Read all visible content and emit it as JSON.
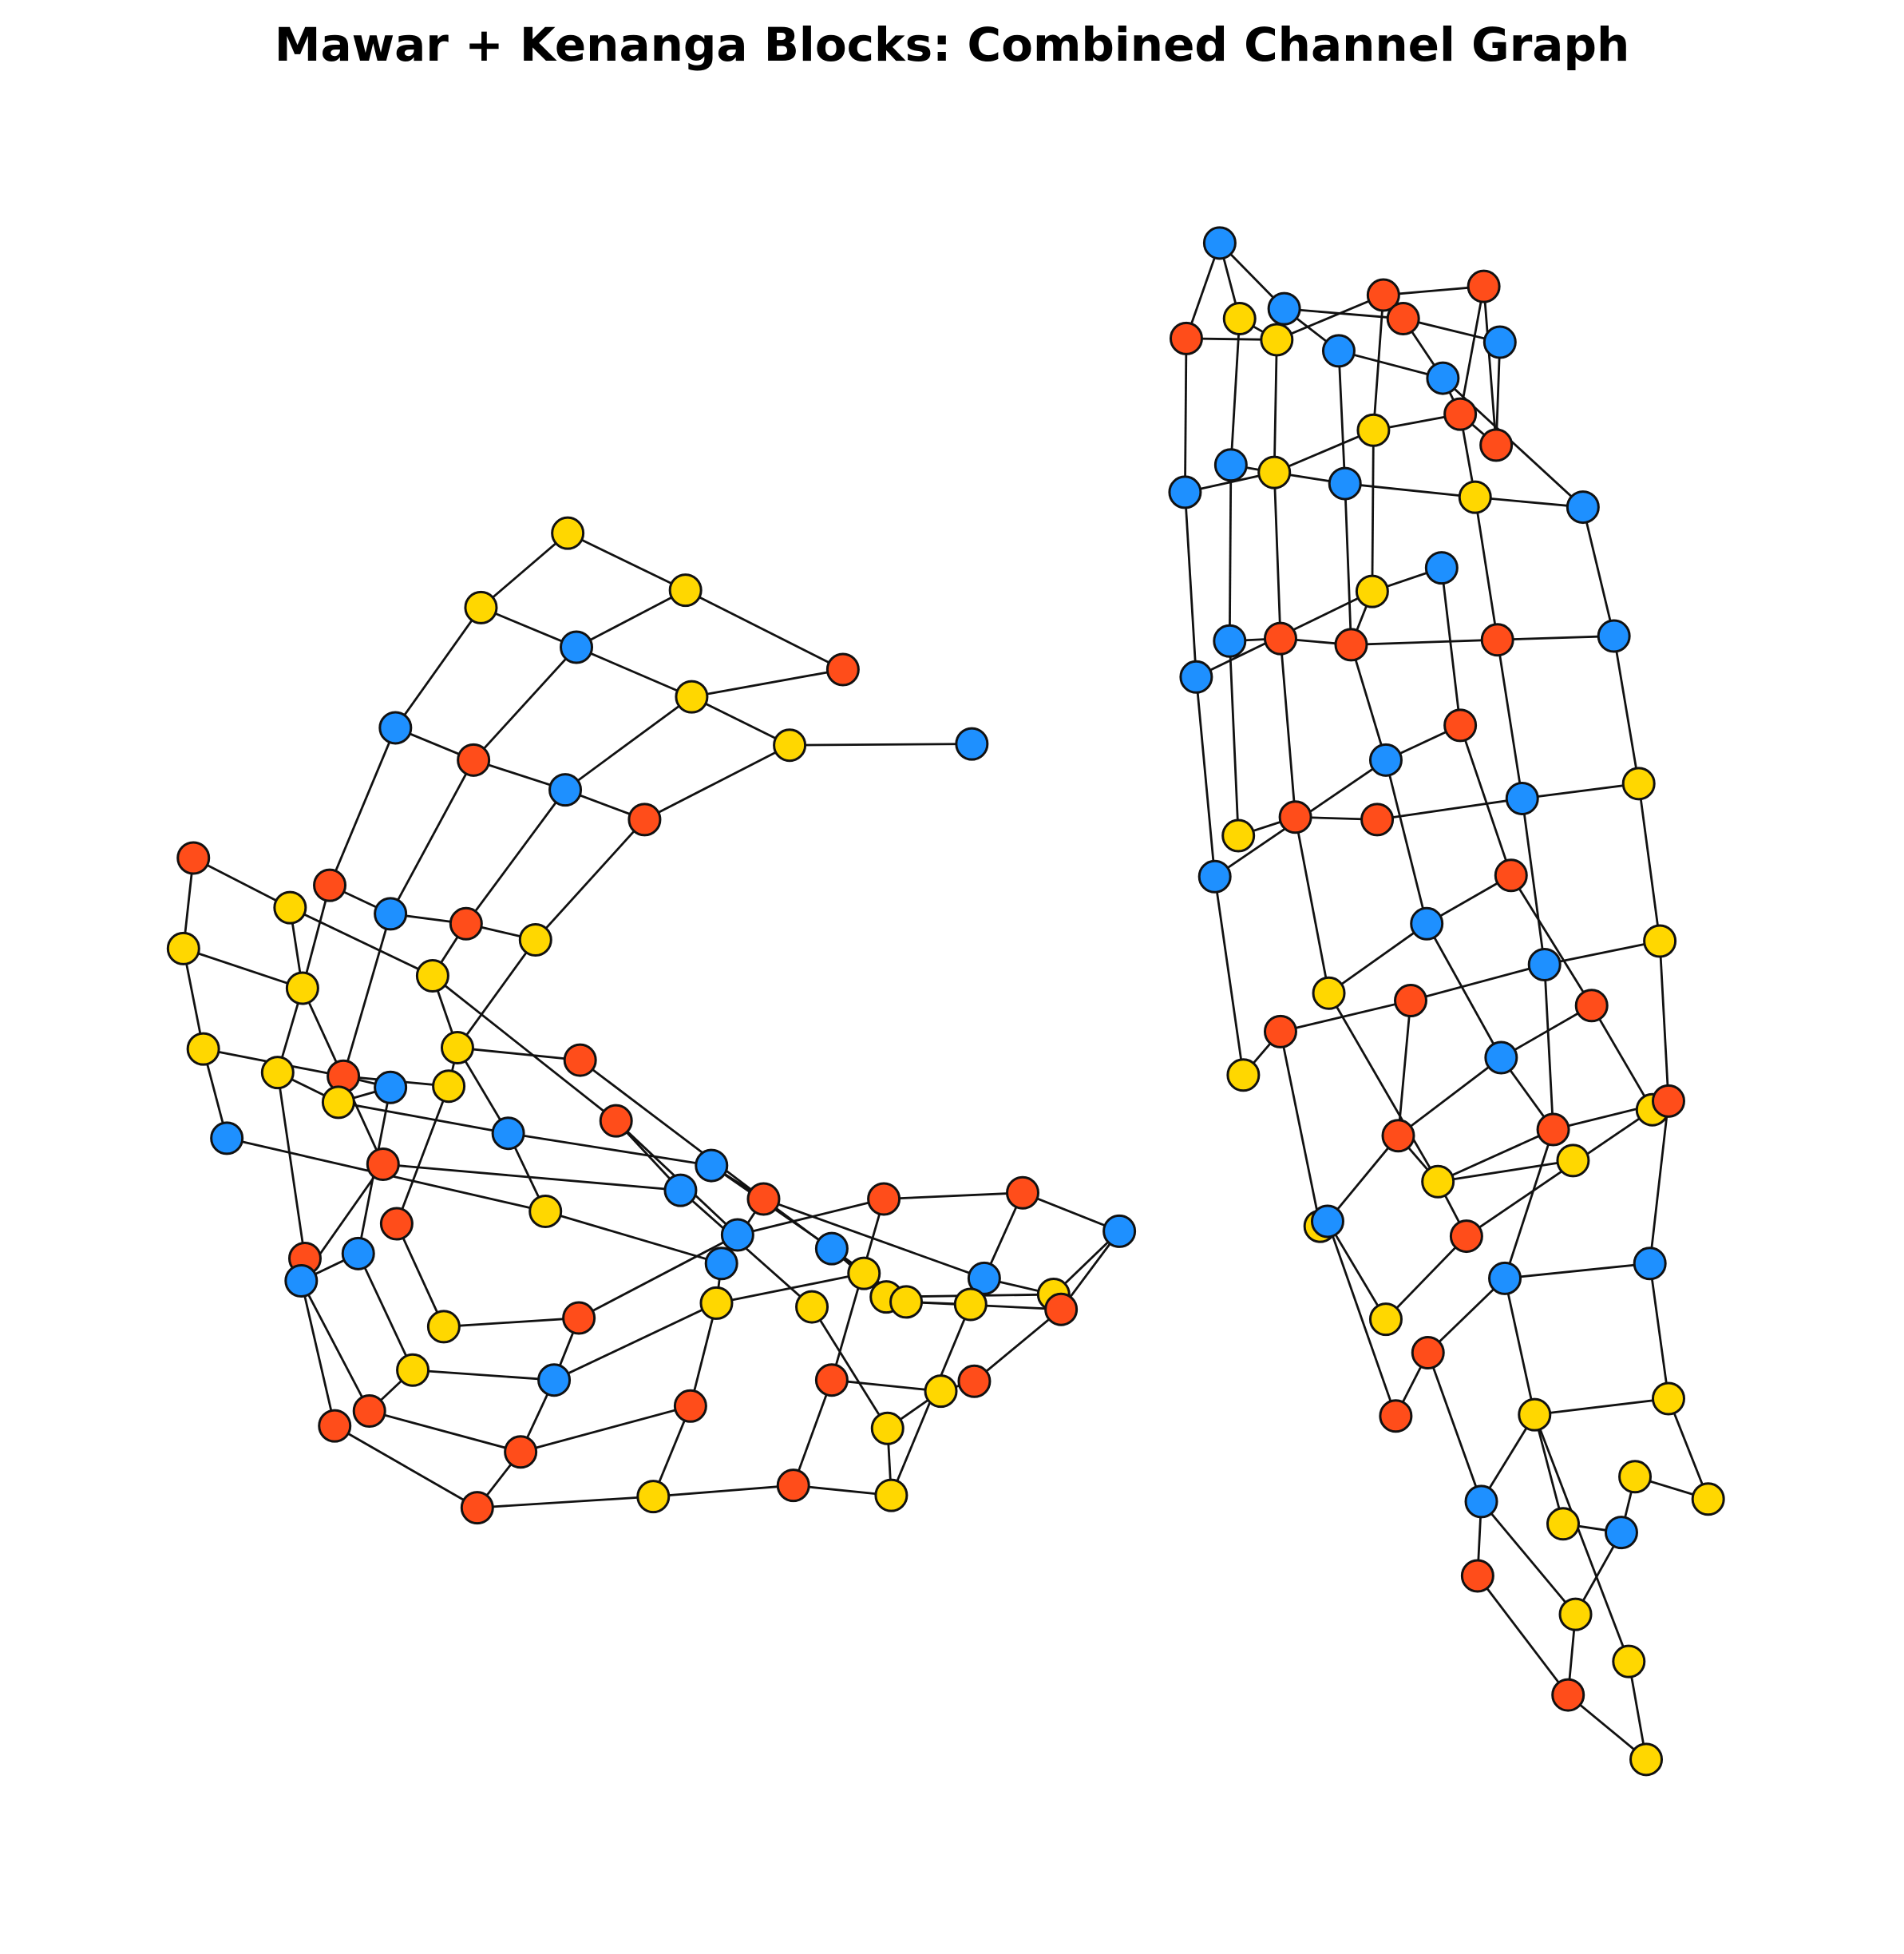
{
  "title": "Mawar + Kenanga Blocks: Combined Channel Graph",
  "colors": {
    "red": "#ff4d1a",
    "yellow": "#ffd700",
    "blue": "#1e90ff",
    "stroke": "#111111",
    "edge": "#111111"
  },
  "components": [
    {
      "name": "Mawar"
    },
    {
      "name": "Kenanga"
    }
  ]
}
